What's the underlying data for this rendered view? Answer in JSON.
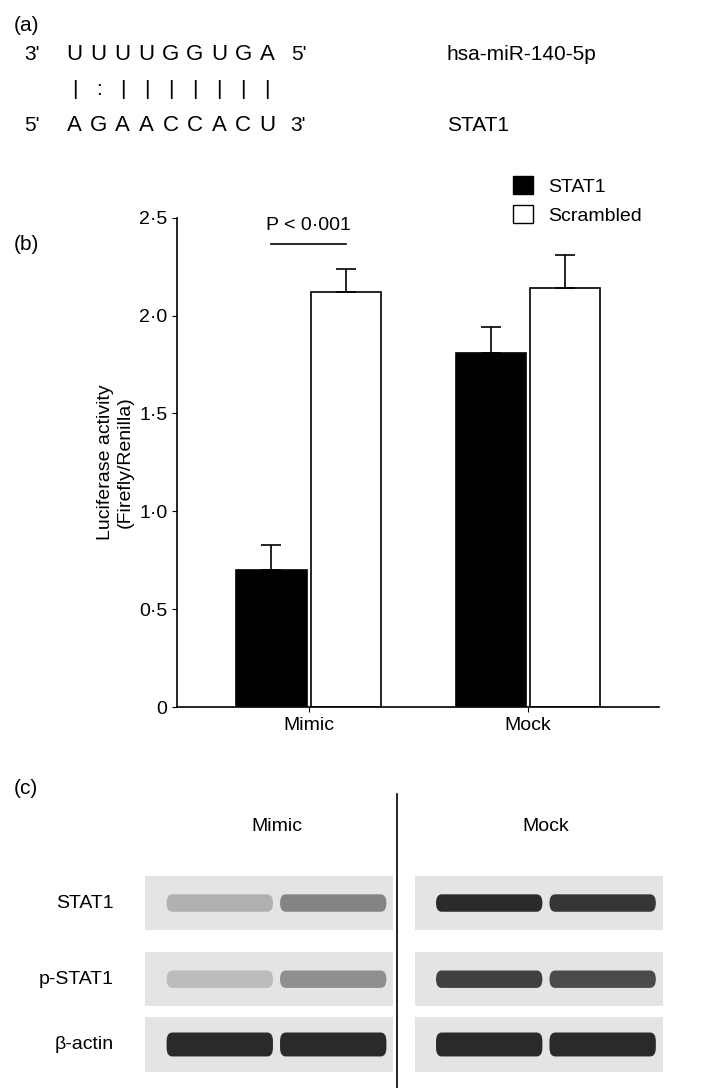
{
  "panel_labels": [
    "(a)",
    "(b)",
    "(c)"
  ],
  "panel_a": {
    "strands": [
      {
        "left_end": "3'",
        "sequence": "UUUUGGUGA",
        "right_end": "5'",
        "name": "hsa-miR-140-5p"
      },
      {
        "left_end": "5'",
        "sequence": "AGAACCACU",
        "right_end": "3'",
        "name": "STAT1"
      }
    ],
    "pairing": [
      "|",
      ":",
      "|",
      "|",
      "|",
      "|",
      "|",
      "|",
      "|"
    ]
  },
  "chart_data": {
    "type": "bar",
    "categories": [
      "Mimic",
      "Mock"
    ],
    "series": [
      {
        "name": "STAT1",
        "color": "#000000",
        "values": [
          0.7,
          1.81
        ],
        "errors": [
          0.13,
          0.13
        ]
      },
      {
        "name": "Scrambled",
        "color": "#ffffff",
        "values": [
          2.12,
          2.14
        ],
        "errors": [
          0.12,
          0.17
        ]
      }
    ],
    "y_label": "Luciferase activity\n(Firefly/Renilla)",
    "ylim": [
      0,
      2.5
    ],
    "yticks": [
      0,
      {
        "value": 0.5,
        "label": "0·5"
      },
      {
        "value": 1.0,
        "label": "1·0"
      },
      {
        "value": 1.5,
        "label": "1·5"
      },
      {
        "value": 2.0,
        "label": "2·0"
      },
      {
        "value": 2.5,
        "label": "2·5"
      }
    ],
    "legend": "upper right",
    "annotations": [
      {
        "text": "P < 0·001",
        "category": "Mimic",
        "series": [
          "STAT1",
          "Scrambled"
        ]
      }
    ]
  },
  "panel_c": {
    "lane_groups": [
      "Mimic",
      "Mock"
    ],
    "rows": [
      {
        "name": "STAT1",
        "band_intensity": [
          0.35,
          0.55,
          0.95,
          0.9
        ]
      },
      {
        "name": "p-STAT1",
        "band_intensity": [
          0.3,
          0.5,
          0.85,
          0.8
        ]
      },
      {
        "name": "β-actin",
        "band_intensity": [
          0.95,
          0.95,
          0.95,
          0.95
        ]
      }
    ]
  }
}
